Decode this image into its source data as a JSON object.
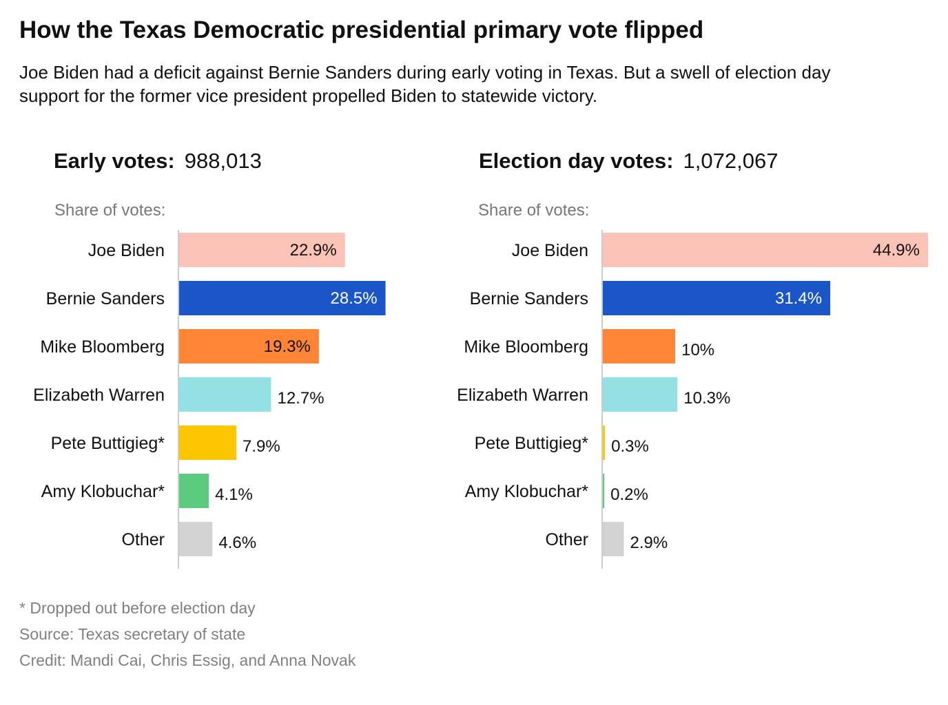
{
  "title": "How the Texas Democratic presidential primary vote flipped",
  "subtitle": "Joe Biden had a deficit against Bernie Sanders during early voting in Texas. But a swell of election day support for the former vice president propelled Biden to statewide victory.",
  "footnotes": {
    "note": "* Dropped out before election day",
    "source": "Source: Texas secretary of state",
    "credit": "Credit: Mandi Cai, Chris Essig, and Anna Novak"
  },
  "colors": {
    "Joe Biden": "#fbc2b7",
    "Bernie Sanders": "#1a56c8",
    "Mike Bloomberg": "#fe8533",
    "Elizabeth Warren": "#93e0e5",
    "Pete Buttigieg*": "#fec600",
    "Amy Klobuchar*": "#5bcc7f",
    "Other": "#d3d3d3"
  },
  "chart_data": [
    {
      "type": "bar",
      "orientation": "horizontal",
      "header_label": "Early votes:",
      "header_total": "988,013",
      "axis_label": "Share of votes:",
      "categories": [
        "Joe Biden",
        "Bernie Sanders",
        "Mike Bloomberg",
        "Elizabeth Warren",
        "Pete Buttigieg*",
        "Amy Klobuchar*",
        "Other"
      ],
      "values": [
        22.9,
        28.5,
        19.3,
        12.7,
        7.9,
        4.1,
        4.6
      ],
      "value_labels": [
        "22.9%",
        "28.5%",
        "19.3%",
        "12.7%",
        "7.9%",
        "4.1%",
        "4.6%"
      ],
      "xlim": [
        0,
        45
      ]
    },
    {
      "type": "bar",
      "orientation": "horizontal",
      "header_label": "Election day votes:",
      "header_total": "1,072,067",
      "axis_label": "Share of votes:",
      "categories": [
        "Joe Biden",
        "Bernie Sanders",
        "Mike Bloomberg",
        "Elizabeth Warren",
        "Pete Buttigieg*",
        "Amy Klobuchar*",
        "Other"
      ],
      "values": [
        44.9,
        31.4,
        10,
        10.3,
        0.3,
        0.2,
        2.9
      ],
      "value_labels": [
        "44.9%",
        "31.4%",
        "10%",
        "10.3%",
        "0.3%",
        "0.2%",
        "2.9%"
      ],
      "xlim": [
        0,
        45
      ]
    }
  ]
}
